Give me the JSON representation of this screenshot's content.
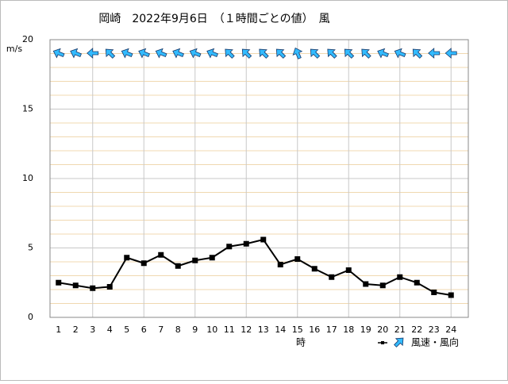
{
  "chart_data": {
    "type": "line",
    "title": "岡崎　2022年9月6日　（１時間ごとの値）　風",
    "y_label": "m/s",
    "x_label": "時",
    "categories": [
      "1",
      "2",
      "3",
      "4",
      "5",
      "6",
      "7",
      "8",
      "9",
      "10",
      "11",
      "12",
      "13",
      "14",
      "15",
      "16",
      "17",
      "18",
      "19",
      "20",
      "21",
      "22",
      "23",
      "24"
    ],
    "series": [
      {
        "name": "風速・風向",
        "color": "#000000",
        "values": [
          2.5,
          2.3,
          2.1,
          2.2,
          4.3,
          3.9,
          4.5,
          3.7,
          4.1,
          4.3,
          5.1,
          5.3,
          5.6,
          3.8,
          4.2,
          3.5,
          2.9,
          3.4,
          2.4,
          2.3,
          2.9,
          2.5,
          1.8,
          1.6
        ],
        "direction": [
          112.5,
          112.5,
          90,
          135,
          112.5,
          112.5,
          112.5,
          112.5,
          112.5,
          112.5,
          135,
          135,
          135,
          135,
          157.5,
          135,
          135,
          135,
          135,
          112.5,
          112.5,
          135,
          90,
          90
        ],
        "arrow_color": "#33bbff"
      }
    ],
    "ylim": [
      0,
      20
    ],
    "yticks": [
      0,
      5,
      10,
      15,
      20
    ],
    "grid": true
  }
}
